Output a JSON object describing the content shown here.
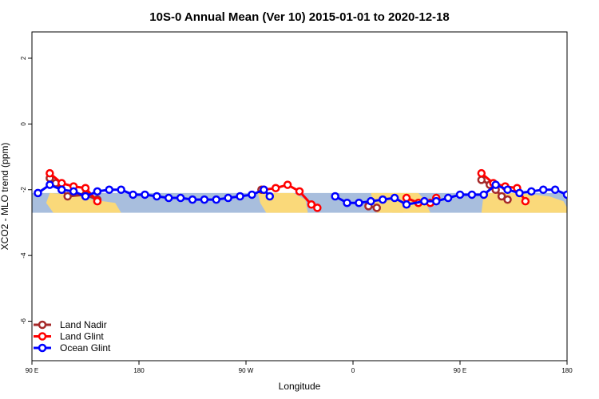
{
  "chart_data": {
    "type": "line",
    "title": "10S-0 Annual Mean (Ver 10)   2015-01-01 to 2020-12-18",
    "xlabel": "Longitude",
    "ylabel": "XCO2 - MLO trend (ppm)",
    "xlim": [
      90,
      540
    ],
    "ylim": [
      -7.2,
      2.8
    ],
    "x_tick_values": [
      90,
      180,
      270,
      360,
      450,
      540
    ],
    "x_tick_labels": [
      "90 E",
      "180",
      "90 W",
      "0",
      "90 E",
      "180"
    ],
    "y_tick_values": [
      2,
      0,
      -2,
      -4,
      -6
    ],
    "y_tick_labels": [
      "2",
      "0",
      "-2",
      "-4",
      "-6"
    ],
    "band": {
      "y_min": -2.7,
      "y_max": -2.1,
      "ocean_color": "#a8bedd",
      "land_color": "#fad97a"
    },
    "land_segments": [
      [
        [
          105,
          -2.1
        ],
        [
          125,
          -2.15
        ],
        [
          140,
          -2.3
        ],
        [
          160,
          -2.4
        ],
        [
          165,
          -2.7
        ],
        [
          108,
          -2.7
        ],
        [
          102,
          -2.4
        ]
      ],
      [
        [
          280,
          -2.1
        ],
        [
          310,
          -2.1
        ],
        [
          320,
          -2.3
        ],
        [
          322,
          -2.7
        ],
        [
          287,
          -2.7
        ],
        [
          282,
          -2.4
        ]
      ],
      [
        [
          375,
          -2.1
        ],
        [
          400,
          -2.1
        ],
        [
          402,
          -2.7
        ],
        [
          380,
          -2.7
        ]
      ],
      [
        [
          395,
          -2.1
        ],
        [
          415,
          -2.1
        ],
        [
          420,
          -2.3
        ],
        [
          425,
          -2.7
        ],
        [
          393,
          -2.7
        ],
        [
          392,
          -2.3
        ]
      ],
      [
        [
          470,
          -2.1
        ],
        [
          500,
          -2.1
        ],
        [
          525,
          -2.2
        ],
        [
          537,
          -2.35
        ],
        [
          540,
          -2.55
        ],
        [
          540,
          -2.7
        ],
        [
          468,
          -2.7
        ]
      ]
    ],
    "legend_position": "bottom-left",
    "series": [
      {
        "name": "Land Nadir",
        "color": "#a52a2a",
        "x": [
          105,
          110,
          115,
          120,
          135,
          145,
          283,
          373,
          380,
          468,
          475,
          480,
          485,
          490
        ],
        "y": [
          -1.65,
          -1.8,
          -2.0,
          -2.2,
          -2.15,
          -2.3,
          -2.0,
          -2.5,
          -2.55,
          -1.7,
          -1.85,
          -2.0,
          -2.2,
          -2.3
        ]
      },
      {
        "name": "Land Glint",
        "color": "#ff0000",
        "x": [
          105,
          115,
          125,
          135,
          145,
          285,
          295,
          305,
          315,
          325,
          330,
          405,
          415,
          425,
          430,
          468,
          478,
          488,
          498,
          505
        ],
        "y": [
          -1.5,
          -1.8,
          -1.9,
          -1.95,
          -2.35,
          -2.0,
          -1.95,
          -1.85,
          -2.05,
          -2.45,
          -2.55,
          -2.25,
          -2.4,
          -2.4,
          -2.25,
          -1.5,
          -1.8,
          -1.9,
          -1.95,
          -2.35
        ]
      },
      {
        "name": "Ocean Glint",
        "color": "#0000ff",
        "x": [
          95,
          105,
          115,
          125,
          135,
          145,
          155,
          165,
          175,
          185,
          195,
          205,
          215,
          225,
          235,
          245,
          255,
          265,
          275,
          285,
          290,
          345,
          355,
          365,
          375,
          385,
          395,
          405,
          420,
          430,
          440,
          450,
          460,
          470,
          480,
          490,
          500,
          510,
          520,
          530,
          540
        ],
        "y": [
          -2.1,
          -1.85,
          -2.0,
          -2.05,
          -2.2,
          -2.05,
          -2.0,
          -2.0,
          -2.15,
          -2.15,
          -2.2,
          -2.25,
          -2.25,
          -2.3,
          -2.3,
          -2.3,
          -2.25,
          -2.2,
          -2.15,
          -2.0,
          -2.2,
          -2.2,
          -2.4,
          -2.4,
          -2.35,
          -2.3,
          -2.25,
          -2.45,
          -2.35,
          -2.35,
          -2.25,
          -2.15,
          -2.15,
          -2.15,
          -1.85,
          -2.0,
          -2.1,
          -2.05,
          -2.0,
          -2.0,
          -2.15
        ]
      }
    ]
  }
}
